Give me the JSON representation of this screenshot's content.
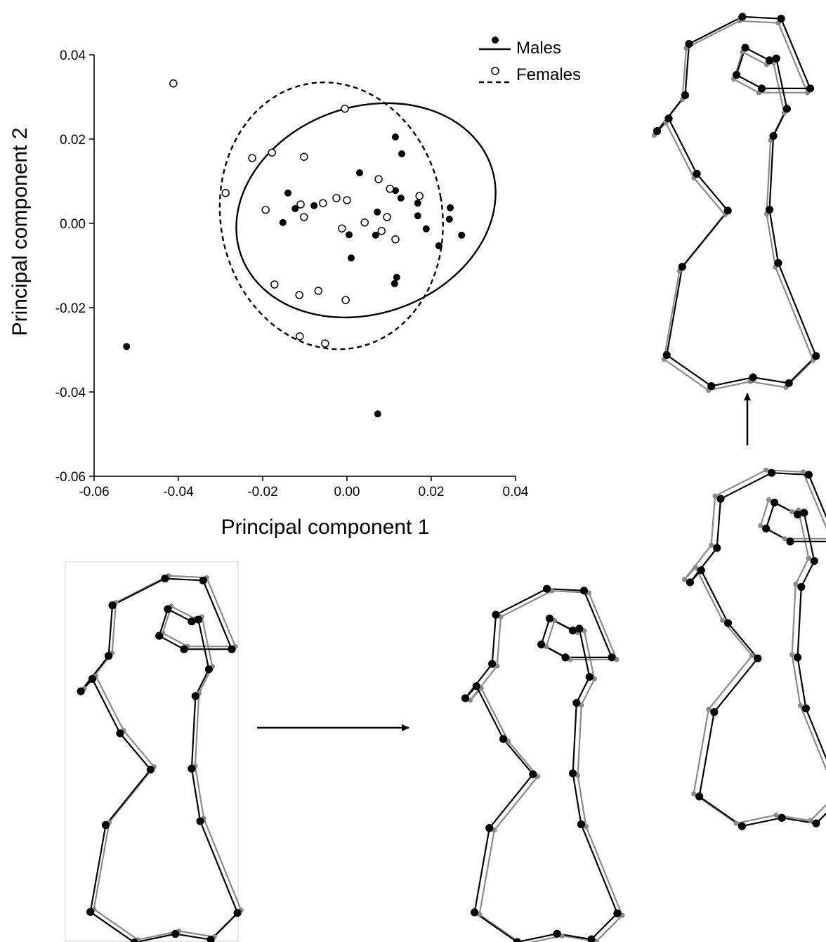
{
  "chart_data": {
    "type": "scatter",
    "xlabel": "Principal component 1",
    "ylabel": "Principal component 2",
    "xlim": [
      -0.06,
      0.04
    ],
    "ylim": [
      -0.06,
      0.04
    ],
    "xticks": [
      "-0.06",
      "-0.04",
      "-0.02",
      "0.00",
      "0.02",
      "0.04"
    ],
    "yticks": [
      "-0.06",
      "-0.04",
      "-0.02",
      "0.00",
      "0.02",
      "0.04"
    ],
    "legend_position": "top-right",
    "series": [
      {
        "name": "Males",
        "marker": "filled-circle",
        "ellipse_style": "solid",
        "ellipse": {
          "cx": 0.0045,
          "cy": 0.0031,
          "rx": 0.0315,
          "ry": 0.0245,
          "angle_deg": -20
        },
        "points": [
          [
            0.0115,
            0.0205
          ],
          [
            0.013,
            0.0165
          ],
          [
            0.003,
            0.012
          ],
          [
            -0.014,
            0.0072
          ],
          [
            -0.0123,
            0.0035
          ],
          [
            -0.0078,
            0.0042
          ],
          [
            -0.0152,
            0.0002
          ],
          [
            0.0115,
            0.0078
          ],
          [
            0.0128,
            0.006
          ],
          [
            0.0168,
            0.0048
          ],
          [
            0.0168,
            0.0018
          ],
          [
            0.0245,
            0.0037
          ],
          [
            0.0243,
            0.001
          ],
          [
            0.0072,
            0.0027
          ],
          [
            0.0005,
            -0.0027
          ],
          [
            0.0068,
            -0.0028
          ],
          [
            0.0188,
            -0.0013
          ],
          [
            0.0272,
            -0.0028
          ],
          [
            0.0218,
            -0.0053
          ],
          [
            0.001,
            -0.0082
          ],
          [
            0.0118,
            -0.0128
          ],
          [
            0.0113,
            -0.0143
          ],
          [
            -0.0523,
            -0.0292
          ],
          [
            0.0073,
            -0.0452
          ]
        ]
      },
      {
        "name": "Females",
        "marker": "open-circle",
        "ellipse_style": "dashed",
        "ellipse": {
          "cx": -0.0037,
          "cy": 0.0018,
          "rx": 0.0263,
          "ry": 0.0318,
          "angle_deg": -10
        },
        "points": [
          [
            -0.0412,
            0.0332
          ],
          [
            -0.0005,
            0.0272
          ],
          [
            -0.0225,
            0.0155
          ],
          [
            -0.0178,
            0.0168
          ],
          [
            -0.0102,
            0.0158
          ],
          [
            -0.0288,
            0.0072
          ],
          [
            0.0075,
            0.0105
          ],
          [
            0.0102,
            0.0082
          ],
          [
            0.0172,
            0.0065
          ],
          [
            -0.0193,
            0.0032
          ],
          [
            -0.011,
            0.0045
          ],
          [
            -0.0057,
            0.0048
          ],
          [
            -0.0025,
            0.006
          ],
          [
            0.0,
            0.0055
          ],
          [
            -0.0102,
            0.0015
          ],
          [
            -0.0012,
            -0.0012
          ],
          [
            0.0042,
            0.0002
          ],
          [
            0.0095,
            0.0015
          ],
          [
            0.0082,
            -0.0018
          ],
          [
            0.0115,
            -0.0038
          ],
          [
            -0.0172,
            -0.0145
          ],
          [
            -0.0113,
            -0.017
          ],
          [
            -0.0068,
            -0.016
          ],
          [
            -0.0003,
            -0.0182
          ],
          [
            -0.0112,
            -0.0268
          ],
          [
            -0.0052,
            -0.0285
          ]
        ]
      }
    ]
  },
  "shapes": {
    "style": "landmark configuration outlines",
    "legend": [
      {
        "role": "target shape",
        "color": "#000000"
      },
      {
        "role": "reference shape",
        "color": "#8a8a8a"
      }
    ],
    "arrows": [
      "right",
      "up"
    ]
  }
}
